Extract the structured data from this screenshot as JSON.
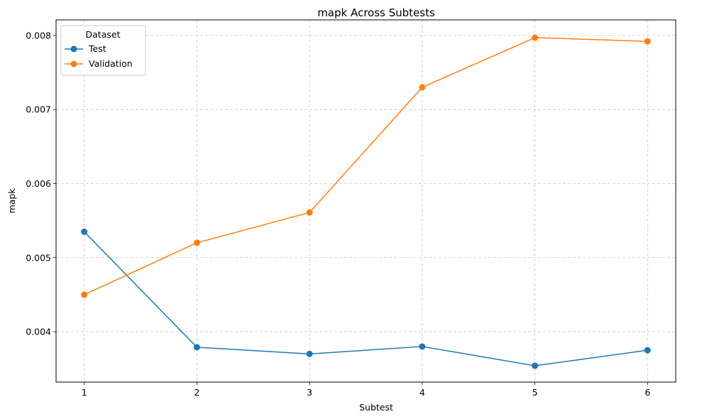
{
  "chart_data": {
    "type": "line",
    "title": "mapk Across Subtests",
    "xlabel": "Subtest",
    "ylabel": "mapk",
    "x": [
      1,
      2,
      3,
      4,
      5,
      6
    ],
    "x_tick_labels": [
      "1",
      "2",
      "3",
      "4",
      "5",
      "6"
    ],
    "xlim": [
      0.75,
      6.25
    ],
    "y_ticks": [
      0.004,
      0.005,
      0.006,
      0.007,
      0.008
    ],
    "y_tick_labels": [
      "0.004",
      "0.005",
      "0.006",
      "0.007",
      "0.008"
    ],
    "ylim": [
      0.00332,
      0.00821
    ],
    "grid": true,
    "legend": {
      "title": "Dataset",
      "placement": "top-left"
    },
    "series": [
      {
        "name": "Test",
        "color": "#1f77b4",
        "marker": "circle",
        "values": [
          0.00535,
          0.00379,
          0.0037,
          0.0038,
          0.00354,
          0.00375
        ]
      },
      {
        "name": "Validation",
        "color": "#ff7f0e",
        "marker": "circle",
        "values": [
          0.0045,
          0.0052,
          0.00561,
          0.0073,
          0.00797,
          0.00792
        ]
      }
    ]
  }
}
